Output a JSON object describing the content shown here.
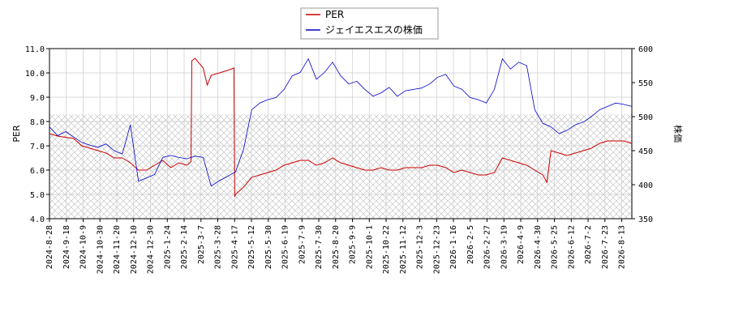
{
  "chart_data": {
    "type": "line",
    "x_ticks": [
      "2024-8-28",
      "2024-9-18",
      "2024-10-9",
      "2024-10-30",
      "2024-11-20",
      "2024-12-10",
      "2024-12-30",
      "2025-1-24",
      "2025-2-14",
      "2025-3-7",
      "2025-3-28",
      "2025-4-17",
      "2025-5-12",
      "2025-5-30",
      "2025-6-19",
      "2025-7-9",
      "2025-7-30",
      "2025-8-20",
      "2025-9-9",
      "2025-10-1",
      "2025-10-22",
      "2025-11-12",
      "2025-12-3",
      "2025-12-23",
      "2026-1-16",
      "2026-2-5",
      "2026-2-27",
      "2026-3-19",
      "2026-4-9",
      "2026-4-30",
      "2026-5-25",
      "2026-6-12",
      "2026-7-2",
      "2026-7-23",
      "2026-8-13"
    ],
    "y_left": {
      "label": "PER",
      "range": [
        4.0,
        11.0
      ],
      "ticks": [
        "4.0",
        "5.0",
        "6.0",
        "7.0",
        "8.0",
        "9.0",
        "10.0",
        "11.0"
      ]
    },
    "y_right": {
      "label": "株価",
      "range": [
        350,
        600
      ],
      "ticks": [
        "350",
        "400",
        "450",
        "500",
        "550",
        "600"
      ]
    },
    "grid": true,
    "hatched_band": {
      "axis": "left",
      "from": 4.0,
      "to": 8.3
    },
    "legend_position": "top-center",
    "series": [
      {
        "name": "PER",
        "axis": "left",
        "color": "#cc0000",
        "values": [
          [
            0,
            7.5
          ],
          [
            1,
            7.4
          ],
          [
            2,
            7.35
          ],
          [
            3,
            7.3
          ],
          [
            4,
            7.0
          ],
          [
            5,
            6.9
          ],
          [
            6,
            6.8
          ],
          [
            7,
            6.7
          ],
          [
            8,
            6.5
          ],
          [
            9,
            6.5
          ],
          [
            10,
            6.3
          ],
          [
            11,
            6.0
          ],
          [
            12,
            6.0
          ],
          [
            13,
            6.2
          ],
          [
            14,
            6.4
          ],
          [
            15,
            6.1
          ],
          [
            16,
            6.3
          ],
          [
            17,
            6.2
          ],
          [
            17.5,
            6.35
          ],
          [
            17.6,
            10.5
          ],
          [
            18,
            10.6
          ],
          [
            19,
            10.2
          ],
          [
            19.5,
            9.5
          ],
          [
            20,
            9.9
          ],
          [
            21,
            10.0
          ],
          [
            22,
            10.1
          ],
          [
            22.8,
            10.2
          ],
          [
            22.9,
            4.9
          ],
          [
            23,
            5.0
          ],
          [
            24,
            5.3
          ],
          [
            25,
            5.7
          ],
          [
            26,
            5.8
          ],
          [
            27,
            5.9
          ],
          [
            28,
            6.0
          ],
          [
            29,
            6.2
          ],
          [
            30,
            6.3
          ],
          [
            31,
            6.4
          ],
          [
            32,
            6.4
          ],
          [
            33,
            6.2
          ],
          [
            34,
            6.3
          ],
          [
            35,
            6.5
          ],
          [
            36,
            6.3
          ],
          [
            37,
            6.2
          ],
          [
            38,
            6.1
          ],
          [
            39,
            6.0
          ],
          [
            40,
            6.0
          ],
          [
            41,
            6.1
          ],
          [
            42,
            6.0
          ],
          [
            43,
            6.0
          ],
          [
            44,
            6.1
          ],
          [
            45,
            6.1
          ],
          [
            46,
            6.1
          ],
          [
            47,
            6.2
          ],
          [
            48,
            6.2
          ],
          [
            49,
            6.1
          ],
          [
            50,
            5.9
          ],
          [
            51,
            6.0
          ],
          [
            52,
            5.9
          ],
          [
            53,
            5.8
          ],
          [
            54,
            5.8
          ],
          [
            55,
            5.9
          ],
          [
            56,
            6.5
          ],
          [
            57,
            6.4
          ],
          [
            58,
            6.3
          ],
          [
            59,
            6.2
          ],
          [
            60,
            6.0
          ],
          [
            61,
            5.8
          ],
          [
            61.5,
            5.5
          ],
          [
            62,
            6.8
          ],
          [
            63,
            6.7
          ],
          [
            64,
            6.6
          ],
          [
            65,
            6.7
          ],
          [
            66,
            6.8
          ],
          [
            67,
            6.9
          ],
          [
            68,
            7.1
          ],
          [
            69,
            7.2
          ],
          [
            70,
            7.2
          ],
          [
            71,
            7.2
          ],
          [
            72,
            7.1
          ]
        ]
      },
      {
        "name": "ジェイエスエスの株価",
        "axis": "right",
        "color": "#0000cc",
        "values": [
          [
            0,
            485
          ],
          [
            1,
            472
          ],
          [
            2,
            478
          ],
          [
            3,
            470
          ],
          [
            4,
            462
          ],
          [
            5,
            458
          ],
          [
            6,
            455
          ],
          [
            7,
            460
          ],
          [
            8,
            450
          ],
          [
            9,
            445
          ],
          [
            10,
            488
          ],
          [
            11,
            405
          ],
          [
            12,
            410
          ],
          [
            13,
            415
          ],
          [
            14,
            440
          ],
          [
            15,
            443
          ],
          [
            16,
            440
          ],
          [
            17,
            438
          ],
          [
            18,
            442
          ],
          [
            19,
            440
          ],
          [
            20,
            398
          ],
          [
            21,
            406
          ],
          [
            22,
            412
          ],
          [
            23,
            419
          ],
          [
            24,
            452
          ],
          [
            25,
            510
          ],
          [
            26,
            520
          ],
          [
            27,
            525
          ],
          [
            28,
            528
          ],
          [
            29,
            540
          ],
          [
            30,
            560
          ],
          [
            31,
            565
          ],
          [
            32,
            585
          ],
          [
            33,
            555
          ],
          [
            34,
            565
          ],
          [
            35,
            580
          ],
          [
            36,
            560
          ],
          [
            37,
            548
          ],
          [
            38,
            552
          ],
          [
            39,
            540
          ],
          [
            40,
            530
          ],
          [
            41,
            535
          ],
          [
            42,
            543
          ],
          [
            43,
            530
          ],
          [
            44,
            538
          ],
          [
            45,
            540
          ],
          [
            46,
            542
          ],
          [
            47,
            548
          ],
          [
            48,
            558
          ],
          [
            49,
            562
          ],
          [
            50,
            545
          ],
          [
            51,
            540
          ],
          [
            52,
            528
          ],
          [
            53,
            525
          ],
          [
            54,
            520
          ],
          [
            55,
            540
          ],
          [
            56,
            585
          ],
          [
            57,
            570
          ],
          [
            58,
            580
          ],
          [
            59,
            575
          ],
          [
            60,
            510
          ],
          [
            61,
            490
          ],
          [
            62,
            485
          ],
          [
            63,
            475
          ],
          [
            64,
            480
          ],
          [
            65,
            488
          ],
          [
            66,
            492
          ],
          [
            67,
            500
          ],
          [
            68,
            510
          ],
          [
            69,
            515
          ],
          [
            70,
            520
          ],
          [
            71,
            518
          ],
          [
            72,
            515
          ]
        ]
      }
    ]
  }
}
